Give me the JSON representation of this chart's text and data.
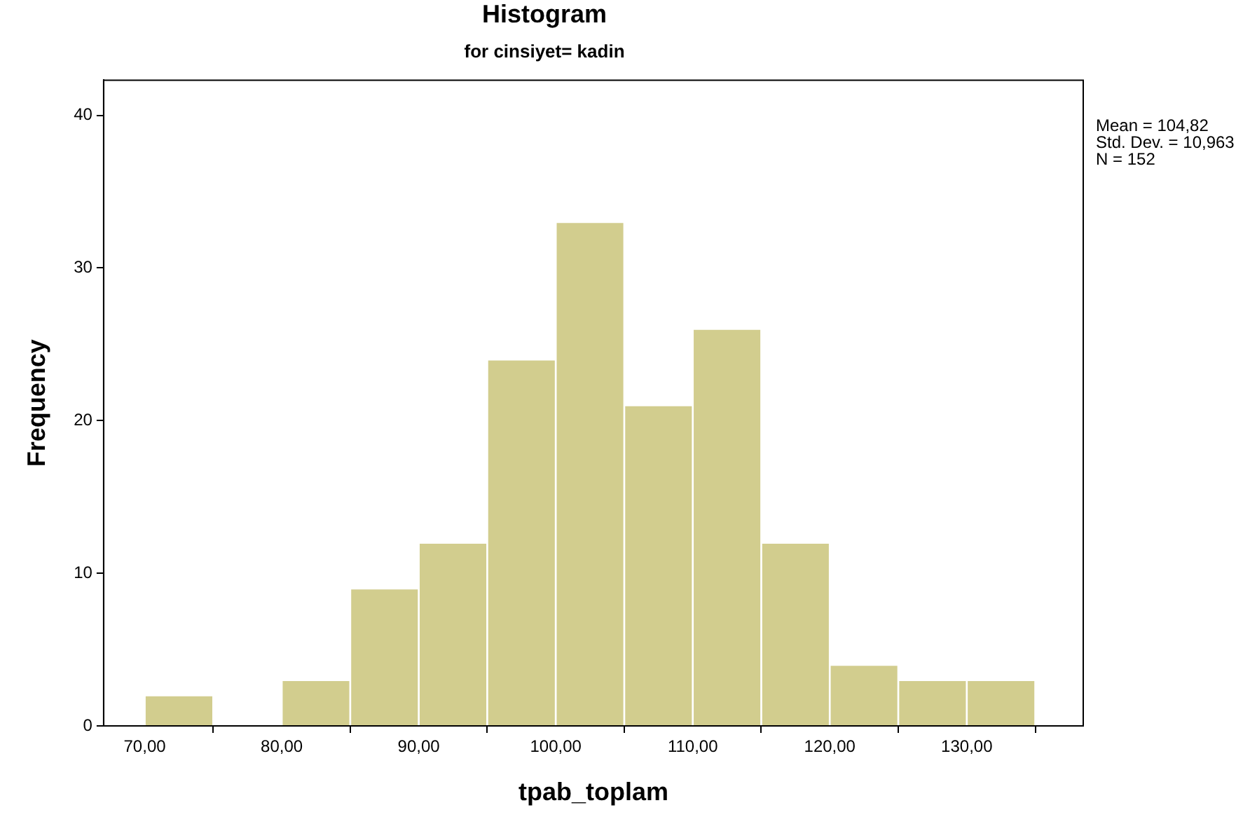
{
  "chart_data": {
    "type": "histogram",
    "title": "Histogram",
    "subtitle": "for cinsiyet= kadin",
    "xlabel": "tpab_toplam",
    "ylabel": "Frequency",
    "bins": [
      70,
      75,
      80,
      85,
      90,
      95,
      100,
      105,
      110,
      115,
      120,
      125,
      130,
      135
    ],
    "values": [
      2,
      0,
      3,
      9,
      12,
      24,
      33,
      21,
      26,
      12,
      4,
      3,
      3
    ],
    "color": "#d2cd8e",
    "xlim": [
      67,
      138.5
    ],
    "xticks": [
      {
        "value": 70,
        "label": "70,00"
      },
      {
        "value": 80,
        "label": "80,00"
      },
      {
        "value": 90,
        "label": "90,00"
      },
      {
        "value": 100,
        "label": "100,00"
      },
      {
        "value": 110,
        "label": "110,00"
      },
      {
        "value": 120,
        "label": "120,00"
      },
      {
        "value": 130,
        "label": "130,00"
      }
    ],
    "ylim": [
      0,
      42.3
    ],
    "yticks": [
      0,
      10,
      20,
      30,
      40
    ],
    "grid": false,
    "legend": false,
    "annotations": [
      "Mean = 104,82",
      "Std. Dev. = 10,963",
      "N = 152"
    ]
  }
}
